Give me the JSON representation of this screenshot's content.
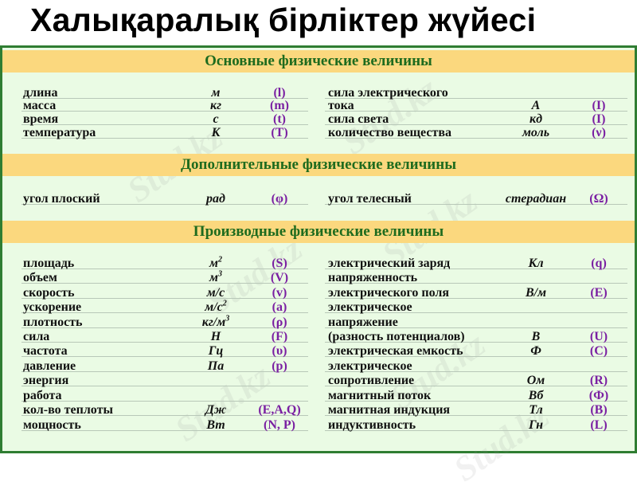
{
  "title": "Халықаралық бірліктер жүйесі",
  "watermark": "Stud.kz",
  "colors": {
    "header_bg": "#fbd87e",
    "header_text": "#1e6b1e",
    "panel_bg": "#eafbe4",
    "border": "#2f7d32",
    "symbol": "#7a1fa2"
  },
  "sections": [
    {
      "title": "Основные физические величины",
      "rows": [
        {
          "left": {
            "name": "длина",
            "unit": "м",
            "symbol": "(l)"
          },
          "right": {
            "name": "сила электрического",
            "unit": "",
            "symbol": ""
          }
        },
        {
          "left": {
            "name": "масса",
            "unit": "кг",
            "symbol": "(m)"
          },
          "right": {
            "name": "тока",
            "unit": "А",
            "symbol": "(I)"
          }
        },
        {
          "left": {
            "name": "время",
            "unit": "с",
            "symbol": "(t)"
          },
          "right": {
            "name": "сила света",
            "unit": "кд",
            "symbol": "(I)"
          }
        },
        {
          "left": {
            "name": "температура",
            "unit": "К",
            "symbol": "(T)"
          },
          "right": {
            "name": "количество вещества",
            "unit": "моль",
            "symbol": "(ν)"
          }
        }
      ]
    },
    {
      "title": "Дополнительные  физические величины",
      "rows": [
        {
          "left": {
            "name": "угол плоский",
            "unit": "рад",
            "symbol": "(φ)"
          },
          "right": {
            "name": "угол телесный",
            "unit": "стерадиан",
            "symbol": "(Ω)"
          }
        }
      ]
    },
    {
      "title": "Производные  физические величины",
      "rows": [
        {
          "left": {
            "name": "площадь",
            "unit": "м",
            "unit_sup": "2",
            "symbol": "(S)"
          },
          "right": {
            "name": "электрический заряд",
            "unit": "Кл",
            "symbol": "(q)"
          }
        },
        {
          "left": {
            "name": "объем",
            "unit": "м",
            "unit_sup": "3",
            "symbol": "(V)"
          },
          "right": {
            "name": "напряженность",
            "unit": "",
            "symbol": ""
          }
        },
        {
          "left": {
            "name": "скорость",
            "unit": "м/с",
            "symbol": "(v)"
          },
          "right": {
            "name": "электрического поля",
            "unit": "В/м",
            "symbol": "(E)"
          }
        },
        {
          "left": {
            "name": "ускорение",
            "unit": "м/с",
            "unit_sup": "2",
            "symbol": "(a)"
          },
          "right": {
            "name": "электрическое",
            "unit": "",
            "symbol": ""
          }
        },
        {
          "left": {
            "name": "плотность",
            "unit": "кг/м",
            "unit_sup": "3",
            "symbol": "(ρ)"
          },
          "right": {
            "name": "напряжение",
            "unit": "",
            "symbol": ""
          }
        },
        {
          "left": {
            "name": "сила",
            "unit": "Н",
            "symbol": "(F)"
          },
          "right": {
            "name": "(разность потенциалов)",
            "unit": "В",
            "symbol": "(U)"
          }
        },
        {
          "left": {
            "name": "частота",
            "unit": "Гц",
            "symbol": "(υ)"
          },
          "right": {
            "name": "электрическая емкость",
            "unit": "Ф",
            "symbol": "(C)"
          }
        },
        {
          "left": {
            "name": "давление",
            "unit": "Па",
            "symbol": "(p)"
          },
          "right": {
            "name": "электрическое",
            "unit": "",
            "symbol": ""
          }
        },
        {
          "left": {
            "name": "энергия",
            "unit": "",
            "symbol": ""
          },
          "right": {
            "name": "сопротивление",
            "unit": "Ом",
            "symbol": "(R)"
          }
        },
        {
          "left": {
            "name": "работа",
            "unit": "",
            "symbol": ""
          },
          "right": {
            "name": "магнитный поток",
            "unit": "Вб",
            "symbol": "(Ф)"
          }
        },
        {
          "left": {
            "name": "кол-во теплоты",
            "unit": "Дж",
            "symbol": "(E,A,Q)"
          },
          "right": {
            "name": "магнитная индукция",
            "unit": "Тл",
            "symbol": "(B)"
          }
        },
        {
          "left": {
            "name": "мощность",
            "unit": "Вт",
            "symbol": "(N, P)"
          },
          "right": {
            "name": "индуктивность",
            "unit": "Гн",
            "symbol": "(L)"
          }
        }
      ]
    }
  ]
}
